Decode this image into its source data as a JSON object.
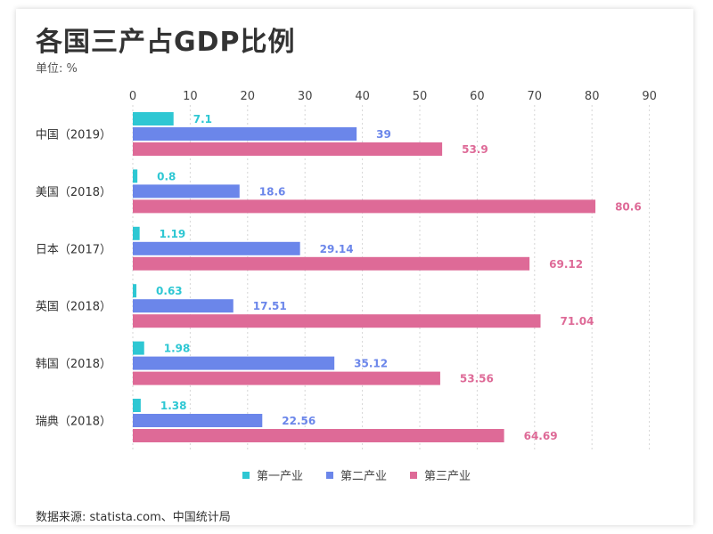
{
  "title": "各国三产占GDP比例",
  "unit_label": "单位: %",
  "source": "数据来源: statista.com、中国统计局",
  "colors": {
    "primary": "#2ec7d3",
    "secondary": "#6b86ea",
    "tertiary": "#de6a97"
  },
  "chart_data": {
    "type": "bar",
    "orientation": "horizontal",
    "title": "各国三产占GDP比例",
    "categories": [
      "中国（2019）",
      "美国（2018）",
      "日本（2017）",
      "英国（2018）",
      "韩国（2018）",
      "瑞典（2018）"
    ],
    "series": [
      {
        "name": "第一产业",
        "values": [
          7.1,
          0.8,
          1.19,
          0.63,
          1.98,
          1.38
        ],
        "labels": [
          "7.1",
          "0.8",
          "1.19",
          "0.63",
          "1.98",
          "1.38"
        ]
      },
      {
        "name": "第二产业",
        "values": [
          39,
          18.6,
          29.14,
          17.51,
          35.12,
          22.56
        ],
        "labels": [
          "39",
          "18.6",
          "29.14",
          "17.51",
          "35.12",
          "22.56"
        ]
      },
      {
        "name": "第三产业",
        "values": [
          53.9,
          80.6,
          69.12,
          71.04,
          53.56,
          64.69
        ],
        "labels": [
          "53.9",
          "80.6",
          "69.12",
          "71.04",
          "53.56",
          "64.69"
        ]
      }
    ],
    "xlim": [
      0,
      90
    ],
    "xticks": [
      "0",
      "10",
      "20",
      "30",
      "40",
      "50",
      "60",
      "70",
      "80",
      "90"
    ],
    "grid": true,
    "legend_position": "bottom"
  }
}
